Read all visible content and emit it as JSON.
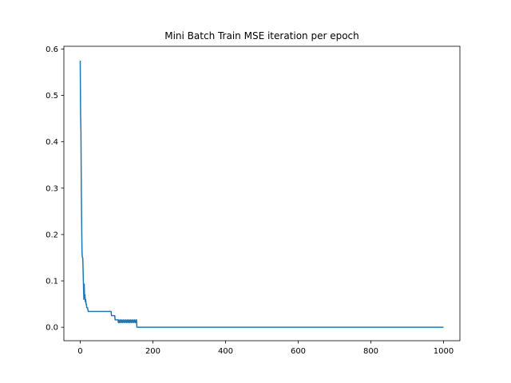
{
  "chart_data": {
    "type": "line",
    "title": "Mini Batch Train MSE iteration per epoch",
    "xlabel": "",
    "ylabel": "",
    "xlim": [
      -45,
      1045
    ],
    "ylim": [
      -0.029,
      0.606
    ],
    "xticks": [
      0,
      200,
      400,
      600,
      800,
      1000
    ],
    "yticks": [
      0.0,
      0.1,
      0.2,
      0.3,
      0.4,
      0.5,
      0.6
    ],
    "grid": false,
    "legend": "none",
    "series": [
      {
        "color": "#1f77b4",
        "x": [
          0,
          1,
          2,
          3,
          4,
          5,
          6,
          7,
          8,
          10,
          11,
          12,
          13,
          14,
          15,
          16,
          17,
          18,
          20,
          22,
          24,
          26,
          28,
          30,
          40,
          50,
          60,
          70,
          80,
          85,
          86,
          95,
          96,
          104,
          105,
          106,
          108,
          110,
          112,
          114,
          116,
          118,
          120,
          122,
          124,
          126,
          128,
          130,
          132,
          134,
          136,
          138,
          140,
          142,
          144,
          146,
          148,
          150,
          152,
          154,
          155,
          156,
          200,
          400,
          600,
          800,
          1000
        ],
        "values": [
          0.575,
          0.46,
          0.42,
          0.3,
          0.22,
          0.16,
          0.15,
          0.15,
          0.12,
          0.06,
          0.093,
          0.065,
          0.07,
          0.055,
          0.06,
          0.05,
          0.05,
          0.042,
          0.042,
          0.034,
          0.034,
          0.034,
          0.034,
          0.034,
          0.034,
          0.034,
          0.034,
          0.034,
          0.034,
          0.034,
          0.025,
          0.025,
          0.016,
          0.016,
          0.01,
          0.016,
          0.01,
          0.016,
          0.01,
          0.016,
          0.01,
          0.016,
          0.01,
          0.016,
          0.01,
          0.016,
          0.01,
          0.016,
          0.01,
          0.016,
          0.01,
          0.016,
          0.01,
          0.016,
          0.01,
          0.016,
          0.01,
          0.016,
          0.01,
          0.016,
          0.016,
          0.0,
          0.0,
          0.0,
          0.0,
          0.0,
          0.0
        ]
      }
    ]
  }
}
